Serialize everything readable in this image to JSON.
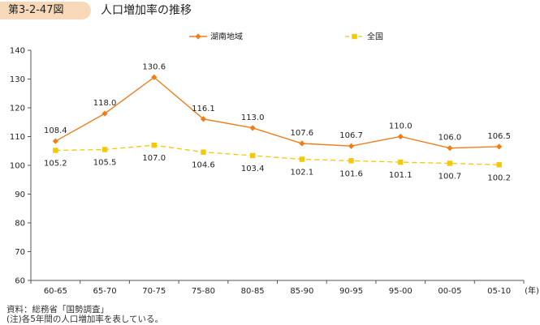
{
  "figure": {
    "number": "第3-2-47図",
    "title": "人口増加率の推移"
  },
  "chart_data": {
    "type": "line",
    "categories": [
      "60-65",
      "65-70",
      "70-75",
      "75-80",
      "80-85",
      "85-90",
      "90-95",
      "95-00",
      "00-05",
      "05-10"
    ],
    "x_unit": "(年)",
    "ylim": [
      60,
      140
    ],
    "yticks": [
      60,
      70,
      80,
      90,
      100,
      110,
      120,
      130,
      140
    ],
    "grid": false,
    "legend_position": "top",
    "series": [
      {
        "name": "湖南地域",
        "color": "#f07d1a",
        "marker": "diamond",
        "line": "solid",
        "values": [
          108.4,
          118.0,
          130.6,
          116.1,
          113.0,
          107.6,
          106.7,
          110.0,
          106.0,
          106.5
        ],
        "labels": [
          "108.4",
          "118.0",
          "130.6",
          "116.1",
          "113.0",
          "107.6",
          "106.7",
          "110.0",
          "106.0",
          "106.5"
        ]
      },
      {
        "name": "全国",
        "color": "#f5c800",
        "marker": "square",
        "line": "dashed",
        "values": [
          105.2,
          105.5,
          107.0,
          104.6,
          103.4,
          102.1,
          101.6,
          101.1,
          100.7,
          100.2
        ],
        "labels": [
          "105.2",
          "105.5",
          "107.0",
          "104.6",
          "103.4",
          "102.1",
          "101.6",
          "101.1",
          "100.7",
          "100.2"
        ]
      }
    ]
  },
  "notes": {
    "source": "資料：総務省「国勢調査」",
    "note": "(注)各5年間の人口増加率を表している。"
  }
}
